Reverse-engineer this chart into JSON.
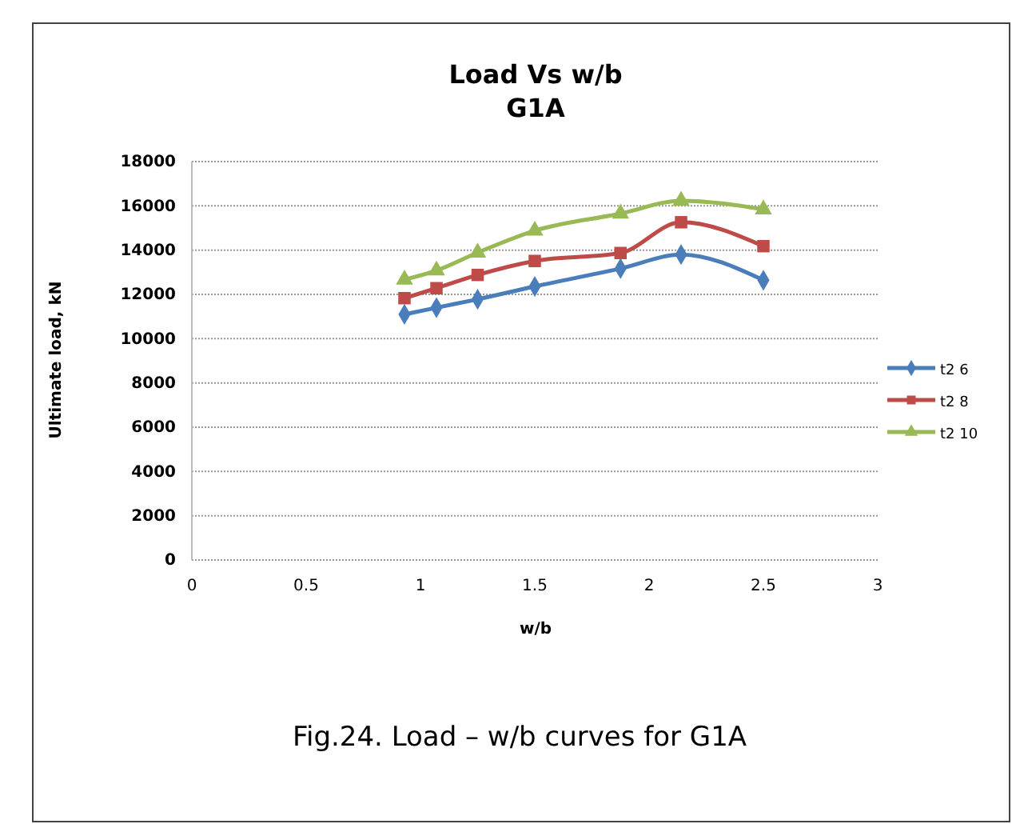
{
  "chart_data": {
    "type": "line",
    "title": "Load Vs w/b",
    "subtitle": "G1A",
    "xlabel": "w/b",
    "ylabel": "Ultimate load, kN",
    "annotations": [
      "Fig.24. Load – w/b curves for G1A"
    ],
    "x": [
      0.93,
      1.07,
      1.25,
      1.5,
      1.875,
      2.14,
      2.5
    ],
    "series": [
      {
        "name": "t2 6",
        "color": "#4a7ebb",
        "marker": "diamond",
        "values": [
          11100,
          11400,
          11780,
          12360,
          13170,
          13800,
          12640
        ]
      },
      {
        "name": "t2 8",
        "color": "#be4b48",
        "marker": "square",
        "values": [
          11830,
          12280,
          12880,
          13510,
          13870,
          15260,
          14180
        ]
      },
      {
        "name": "t2 10",
        "color": "#98b954",
        "marker": "triangle",
        "values": [
          12670,
          13080,
          13890,
          14880,
          15650,
          16230,
          15840
        ]
      }
    ],
    "xlim": [
      0,
      3
    ],
    "xticks": [
      0,
      0.5,
      1,
      1.5,
      2,
      2.5,
      3
    ],
    "ylim": [
      0,
      18000
    ],
    "yticks": [
      0,
      2000,
      4000,
      6000,
      8000,
      10000,
      12000,
      14000,
      16000,
      18000
    ],
    "grid": "y",
    "legend": "right",
    "line_style": "solid"
  }
}
